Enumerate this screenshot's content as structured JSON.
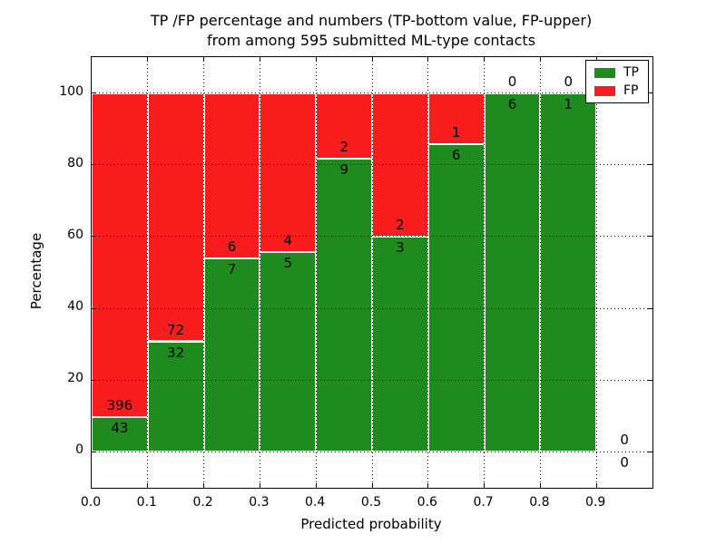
{
  "chart_data": {
    "type": "bar",
    "stacked": true,
    "units": "percent",
    "title_lines": [
      "TP /FP percentage and numbers (TP-bottom value, FP-upper)",
      "from among 595 submitted ML-type contacts"
    ],
    "xlabel": "Predicted probability",
    "ylabel": "Percentage",
    "total_contacts": 595,
    "xlim": [
      0.0,
      1.0
    ],
    "ylim": [
      -10,
      110
    ],
    "xticks": [
      "0.0",
      "0.1",
      "0.2",
      "0.3",
      "0.4",
      "0.5",
      "0.6",
      "0.7",
      "0.8",
      "0.9"
    ],
    "yticks": [
      0,
      20,
      40,
      60,
      80,
      100
    ],
    "grid": true,
    "legend": {
      "position": "upper-right",
      "entries": [
        {
          "label": "TP",
          "color": "#1f8b1f"
        },
        {
          "label": "FP",
          "color": "#f91d1d"
        }
      ]
    },
    "bin_width": 0.1,
    "bins": [
      {
        "x0": 0.0,
        "x1": 0.1,
        "tp": 43,
        "fp": 396,
        "tp_percent": 9.8
      },
      {
        "x0": 0.1,
        "x1": 0.2,
        "tp": 32,
        "fp": 72,
        "tp_percent": 30.8
      },
      {
        "x0": 0.2,
        "x1": 0.3,
        "tp": 7,
        "fp": 6,
        "tp_percent": 53.8
      },
      {
        "x0": 0.3,
        "x1": 0.4,
        "tp": 5,
        "fp": 4,
        "tp_percent": 55.6
      },
      {
        "x0": 0.4,
        "x1": 0.5,
        "tp": 9,
        "fp": 2,
        "tp_percent": 81.8
      },
      {
        "x0": 0.5,
        "x1": 0.6,
        "tp": 3,
        "fp": 2,
        "tp_percent": 60.0
      },
      {
        "x0": 0.6,
        "x1": 0.7,
        "tp": 6,
        "fp": 1,
        "tp_percent": 85.7
      },
      {
        "x0": 0.7,
        "x1": 0.8,
        "tp": 6,
        "fp": 0,
        "tp_percent": 100.0
      },
      {
        "x0": 0.8,
        "x1": 0.9,
        "tp": 1,
        "fp": 0,
        "tp_percent": 100.0
      },
      {
        "x0": 0.9,
        "x1": 1.0,
        "tp": 0,
        "fp": 0,
        "tp_percent": 0.0
      }
    ],
    "series": [
      {
        "name": "TP",
        "color": "#1f8b1f",
        "values": [
          43,
          32,
          7,
          5,
          9,
          3,
          6,
          6,
          1,
          0
        ]
      },
      {
        "name": "FP",
        "color": "#f91d1d",
        "values": [
          396,
          72,
          6,
          4,
          2,
          2,
          1,
          0,
          0,
          0
        ]
      }
    ]
  }
}
